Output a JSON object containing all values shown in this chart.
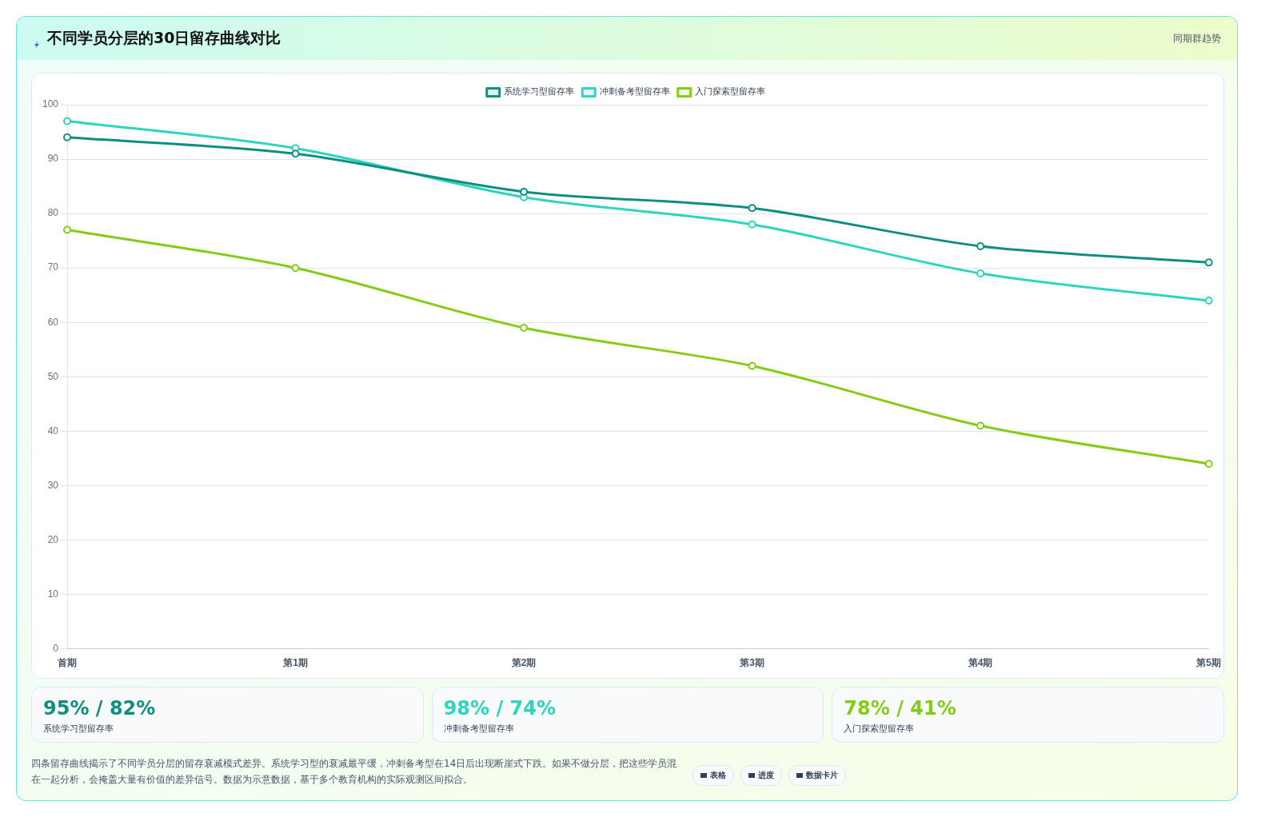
{
  "chart_data": {
    "type": "line",
    "title": "不同学员分层的30日留存曲线对比",
    "subtitle": "同期群趋势",
    "categories": [
      "首期",
      "第1期",
      "第2期",
      "第3期",
      "第4期",
      "第5期"
    ],
    "series": [
      {
        "name": "系统学习型留存率",
        "color": "#0f8f80",
        "values": [
          94,
          91,
          84,
          81,
          74,
          71
        ]
      },
      {
        "name": "冲刺备考型留存率",
        "color": "#2dd4bf",
        "values": [
          97,
          92,
          83,
          78,
          69,
          64
        ]
      },
      {
        "name": "入门探索型留存率",
        "color": "#84cc16",
        "values": [
          77,
          70,
          59,
          52,
          41,
          34
        ]
      }
    ],
    "ylim": [
      0,
      100
    ],
    "yticks": [
      0,
      10,
      20,
      30,
      40,
      50,
      60,
      70,
      80,
      90,
      100
    ],
    "grid": "y",
    "legend": "top",
    "marker": "circle",
    "line_style": "solid",
    "annotations": [
      "95% / 82%",
      "系统学习型留存率",
      "98% / 74%",
      "冲刺备考型留存率",
      "78% / 41%",
      "入门探索型留存率",
      "四条留存曲线揭示了不同学员分层的留存衰减模式差异。系统学习型的衰减最平缓，冲刺备考型在14日后出现断崖式下跌。如果不做分层，把这些学员混在一起分析，会掩盖大量有价值的差异信号。数据为示意数据，基于多个教育机构的实际观测区间拟合。",
      "表格",
      "进度",
      "数据卡片"
    ]
  }
}
